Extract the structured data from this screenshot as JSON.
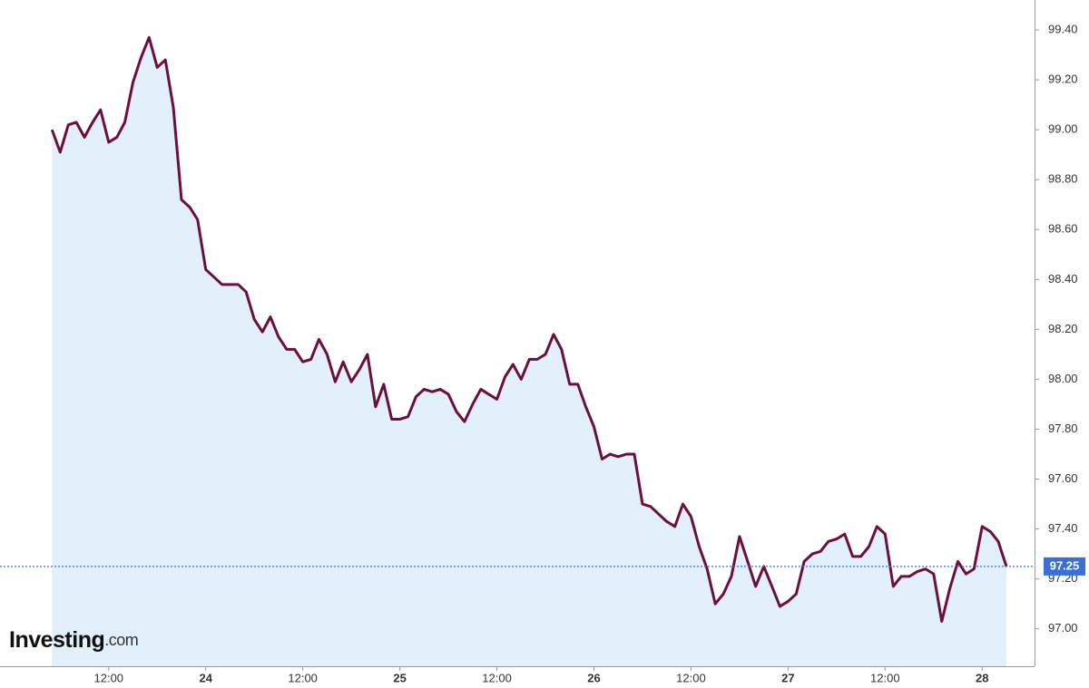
{
  "chart_data": {
    "type": "area-line",
    "color": "#6b0f3d",
    "fill_color": "#e1f0fa",
    "x": [
      23.208,
      23.25,
      23.292,
      23.333,
      23.375,
      23.417,
      23.458,
      23.5,
      23.542,
      23.583,
      23.625,
      23.667,
      23.708,
      23.75,
      23.792,
      23.833,
      23.875,
      23.917,
      23.958,
      24,
      24.042,
      24.083,
      24.125,
      24.167,
      24.208,
      24.25,
      24.292,
      24.333,
      24.375,
      24.417,
      24.458,
      24.5,
      24.542,
      24.583,
      24.625,
      24.667,
      24.708,
      24.75,
      24.792,
      24.833,
      24.875,
      24.917,
      24.958,
      25,
      25.042,
      25.083,
      25.125,
      25.167,
      25.208,
      25.25,
      25.292,
      25.333,
      25.375,
      25.417,
      25.458,
      25.5,
      25.542,
      25.583,
      25.625,
      25.667,
      25.708,
      25.75,
      25.792,
      25.833,
      25.875,
      25.917,
      25.958,
      26,
      26.042,
      26.083,
      26.125,
      26.167,
      26.208,
      26.25,
      26.292,
      26.333,
      26.375,
      26.417,
      26.458,
      26.5,
      26.542,
      26.583,
      26.625,
      26.667,
      26.708,
      26.75,
      26.792,
      26.833,
      26.875,
      26.917,
      26.958,
      27,
      27.042,
      27.083,
      27.125,
      27.167,
      27.208,
      27.25,
      27.292,
      27.333,
      27.375,
      27.417,
      27.458,
      27.5,
      27.542,
      27.583,
      27.625,
      27.667,
      27.708,
      27.75,
      27.792,
      27.833,
      27.875,
      27.917,
      27.958,
      28,
      28.042,
      28.083,
      28.125
    ],
    "values": [
      99.0,
      98.91,
      99.02,
      99.03,
      98.97,
      99.03,
      99.08,
      98.95,
      98.97,
      99.03,
      99.19,
      99.29,
      99.37,
      99.25,
      99.28,
      99.09,
      98.72,
      98.69,
      98.64,
      98.44,
      98.41,
      98.38,
      98.38,
      98.38,
      98.35,
      98.24,
      98.19,
      98.25,
      98.17,
      98.12,
      98.12,
      98.07,
      98.08,
      98.16,
      98.1,
      97.99,
      98.07,
      97.99,
      98.04,
      98.1,
      97.89,
      97.98,
      97.84,
      97.84,
      97.85,
      97.93,
      97.96,
      97.95,
      97.96,
      97.94,
      97.87,
      97.83,
      97.9,
      97.96,
      97.94,
      97.92,
      98.01,
      98.06,
      98.0,
      98.08,
      98.08,
      98.1,
      98.18,
      98.12,
      97.98,
      97.98,
      97.89,
      97.81,
      97.68,
      97.7,
      97.69,
      97.7,
      97.7,
      97.5,
      97.49,
      97.46,
      97.43,
      97.41,
      97.5,
      97.45,
      97.33,
      97.24,
      97.1,
      97.14,
      97.21,
      97.37,
      97.27,
      97.17,
      97.25,
      97.17,
      97.09,
      97.11,
      97.14,
      97.27,
      97.3,
      97.31,
      97.35,
      97.36,
      97.38,
      97.29,
      97.29,
      97.33,
      97.41,
      97.38,
      97.17,
      97.21,
      97.21,
      97.23,
      97.24,
      97.22,
      97.03,
      97.16,
      97.27,
      97.22,
      97.24,
      97.41,
      97.39,
      97.35,
      97.25
    ],
    "xlim": [
      22.94,
      28.27
    ],
    "ylim": [
      96.85,
      99.52
    ],
    "xticks": [
      {
        "value": 23.5,
        "label": "12:00"
      },
      24,
      {
        "value": 24.5,
        "label": "12:00"
      },
      25,
      {
        "value": 25.5,
        "label": "12:00"
      },
      26,
      {
        "value": 26.5,
        "label": "12:00"
      },
      27,
      {
        "value": 27.5,
        "label": "12:00"
      },
      28
    ],
    "yticks": [
      {
        "value": 97.0,
        "label": "97.00"
      },
      {
        "value": 97.2,
        "label": "97.20"
      },
      {
        "value": 97.4,
        "label": "97.40"
      },
      {
        "value": 97.6,
        "label": "97.60"
      },
      {
        "value": 97.8,
        "label": "97.80"
      },
      {
        "value": 98.0,
        "label": "98.00"
      },
      {
        "value": 98.2,
        "label": "98.20"
      },
      {
        "value": 98.4,
        "label": "98.40"
      },
      {
        "value": 98.6,
        "label": "98.60"
      },
      {
        "value": 98.8,
        "label": "98.80"
      },
      {
        "value": 99.0,
        "label": "99.00"
      },
      {
        "value": 99.2,
        "label": "99.20"
      },
      {
        "value": 99.4,
        "label": "99.40"
      }
    ],
    "current_value": 97.25,
    "current_color": "#3a6fd8",
    "watermark": {
      "brand": "Investing",
      "suffix": ".com"
    }
  }
}
